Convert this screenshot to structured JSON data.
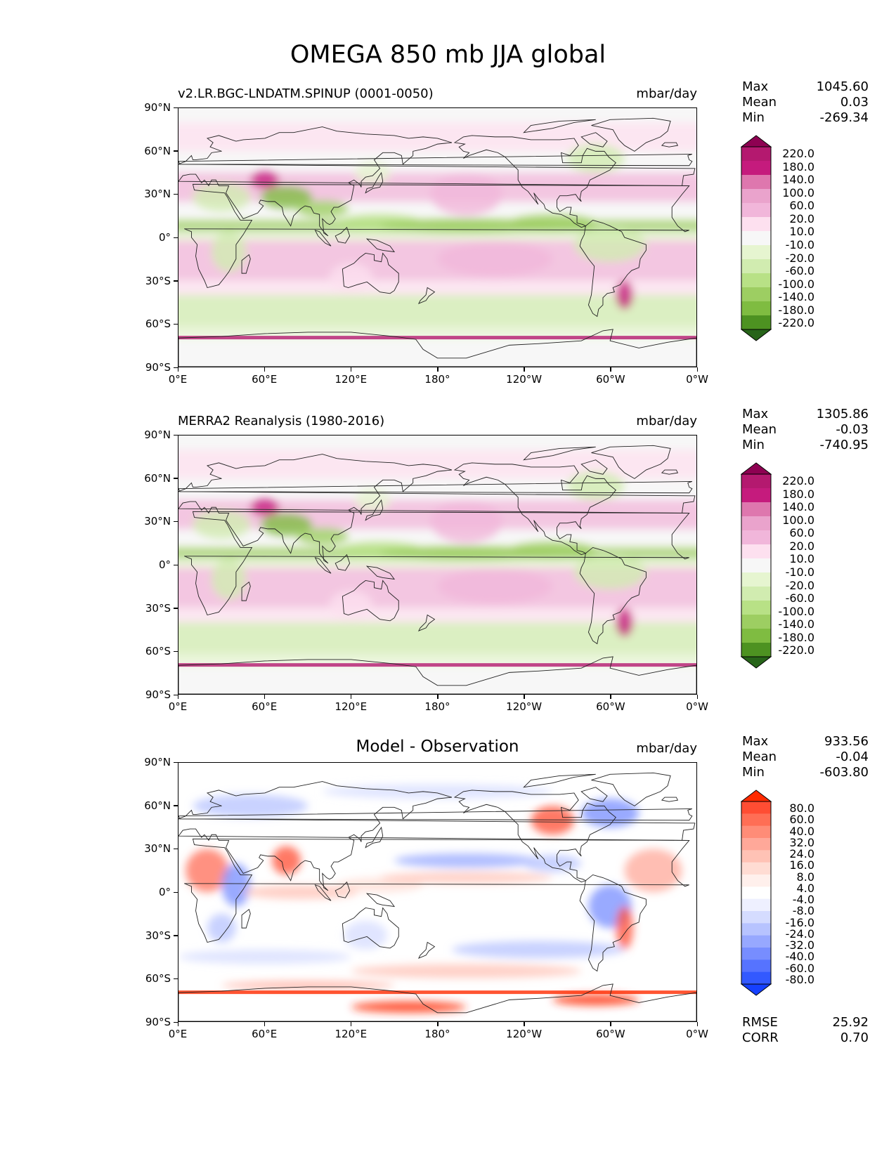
{
  "title": "OMEGA 850 mb JJA global",
  "panels": [
    {
      "left_title": "v2.LR.BGC-LNDATM.SPINUP (0001-0050)",
      "center_title": "",
      "units": "mbar/day",
      "stats": {
        "max": "1045.60",
        "mean": "0.03",
        "min": "-269.34"
      },
      "colormap": "PiYG",
      "colorbar_levels": [
        "220.0",
        "180.0",
        "140.0",
        "100.0",
        "60.0",
        "20.0",
        "10.0",
        "-10.0",
        "-20.0",
        "-60.0",
        "-100.0",
        "-140.0",
        "-180.0",
        "-220.0"
      ]
    },
    {
      "left_title": "MERRA2 Reanalysis (1980-2016)",
      "center_title": "",
      "units": "mbar/day",
      "stats": {
        "max": "1305.86",
        "mean": "-0.03",
        "min": "-740.95"
      },
      "colormap": "PiYG",
      "colorbar_levels": [
        "220.0",
        "180.0",
        "140.0",
        "100.0",
        "60.0",
        "20.0",
        "10.0",
        "-10.0",
        "-20.0",
        "-60.0",
        "-100.0",
        "-140.0",
        "-180.0",
        "-220.0"
      ]
    },
    {
      "left_title": "",
      "center_title": "Model - Observation",
      "units": "mbar/day",
      "stats": {
        "max": "933.56",
        "mean": "-0.04",
        "min": "-603.80"
      },
      "colormap": "bwr",
      "colorbar_levels": [
        "80.0",
        "60.0",
        "40.0",
        "32.0",
        "24.0",
        "16.0",
        "8.0",
        "4.0",
        "-4.0",
        "-8.0",
        "-16.0",
        "-24.0",
        "-32.0",
        "-40.0",
        "-60.0",
        "-80.0"
      ],
      "rmse": "25.92",
      "corr": "0.70"
    }
  ],
  "labels": {
    "max": "Max",
    "mean": "Mean",
    "min": "Min",
    "rmse": "RMSE",
    "corr": "CORR"
  },
  "lat_ticks": [
    "90°N",
    "60°N",
    "30°N",
    "0°",
    "30°S",
    "60°S",
    "90°S"
  ],
  "lon_ticks": [
    "0°E",
    "60°E",
    "120°E",
    "180°",
    "120°W",
    "60°W",
    "0°W"
  ],
  "palettes": {
    "piyg": [
      "#8e0152",
      "#b4196f",
      "#c51b7d",
      "#de77ae",
      "#eaa3cc",
      "#f1b6da",
      "#fde0ef",
      "#f7f7f7",
      "#e6f5d0",
      "#d1ecb0",
      "#b8e186",
      "#9dce62",
      "#7fbc41",
      "#4d9221",
      "#276419"
    ],
    "bwr": [
      "#ff2a00",
      "#ff4d33",
      "#ff6e55",
      "#ff8c77",
      "#ffa899",
      "#ffc2b5",
      "#ffdcd3",
      "#fff0ec",
      "#ffffff",
      "#eef0ff",
      "#d5dcff",
      "#b7c3ff",
      "#97a8ff",
      "#778dff",
      "#5673ff",
      "#3359ff",
      "#1540ff"
    ]
  },
  "land_color": "#ffffff"
}
